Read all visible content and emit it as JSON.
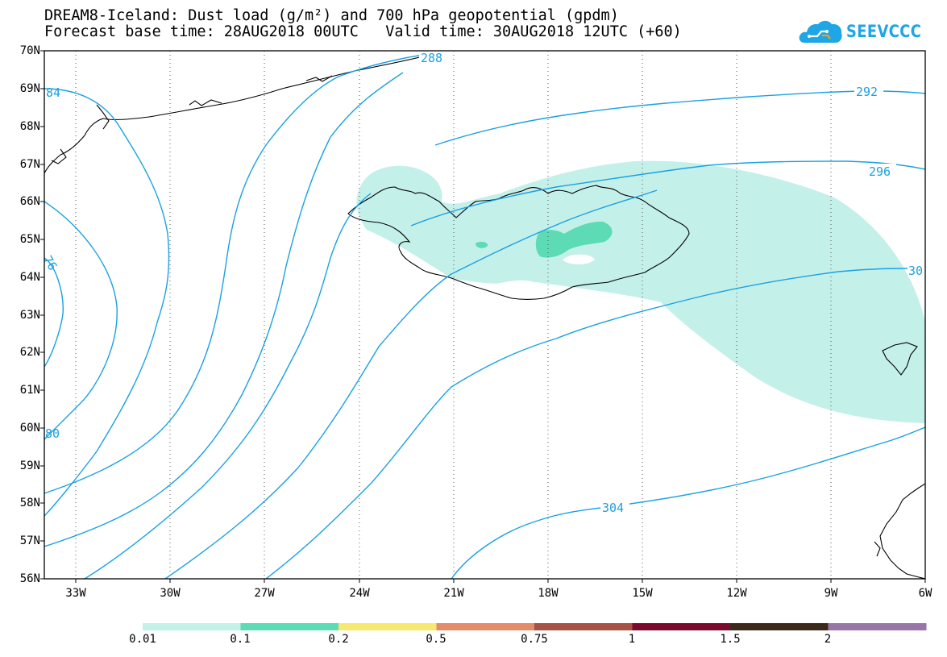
{
  "title": {
    "line1": "DREAM8-Iceland: Dust load (g/m²) and 700 hPa geopotential (gpdm)",
    "line2": "Forecast base time: 28AUG2018 00UTC   Valid time: 30AUG2018 12UTC (+60)"
  },
  "logo": {
    "text": "SEEVCCC",
    "icon": "cloud-icon",
    "color": "#1ea6e6"
  },
  "map": {
    "lat_labels": [
      "70N",
      "69N",
      "68N",
      "67N",
      "66N",
      "65N",
      "64N",
      "63N",
      "62N",
      "61N",
      "60N",
      "59N",
      "58N",
      "57N",
      "56N"
    ],
    "lon_labels": [
      "33W",
      "30W",
      "27W",
      "24W",
      "21W",
      "18W",
      "15W",
      "12W",
      "9W",
      "6W"
    ],
    "contour_color": "#1ba1e2",
    "coast_color": "#000000",
    "contour_labels": [
      "288",
      "292",
      "296",
      "30",
      "304",
      "84",
      "76",
      "80"
    ]
  },
  "legend": {
    "labels": [
      "0.01",
      "0.1",
      "0.2",
      "0.5",
      "0.75",
      "1",
      "1.5",
      "2"
    ],
    "colors": [
      "#c4f0ea",
      "#5cdbb5",
      "#f7e96f",
      "#e38c6a",
      "#a65244",
      "#7c0a2e",
      "#3b2a1a",
      "#9a76a8"
    ]
  }
}
